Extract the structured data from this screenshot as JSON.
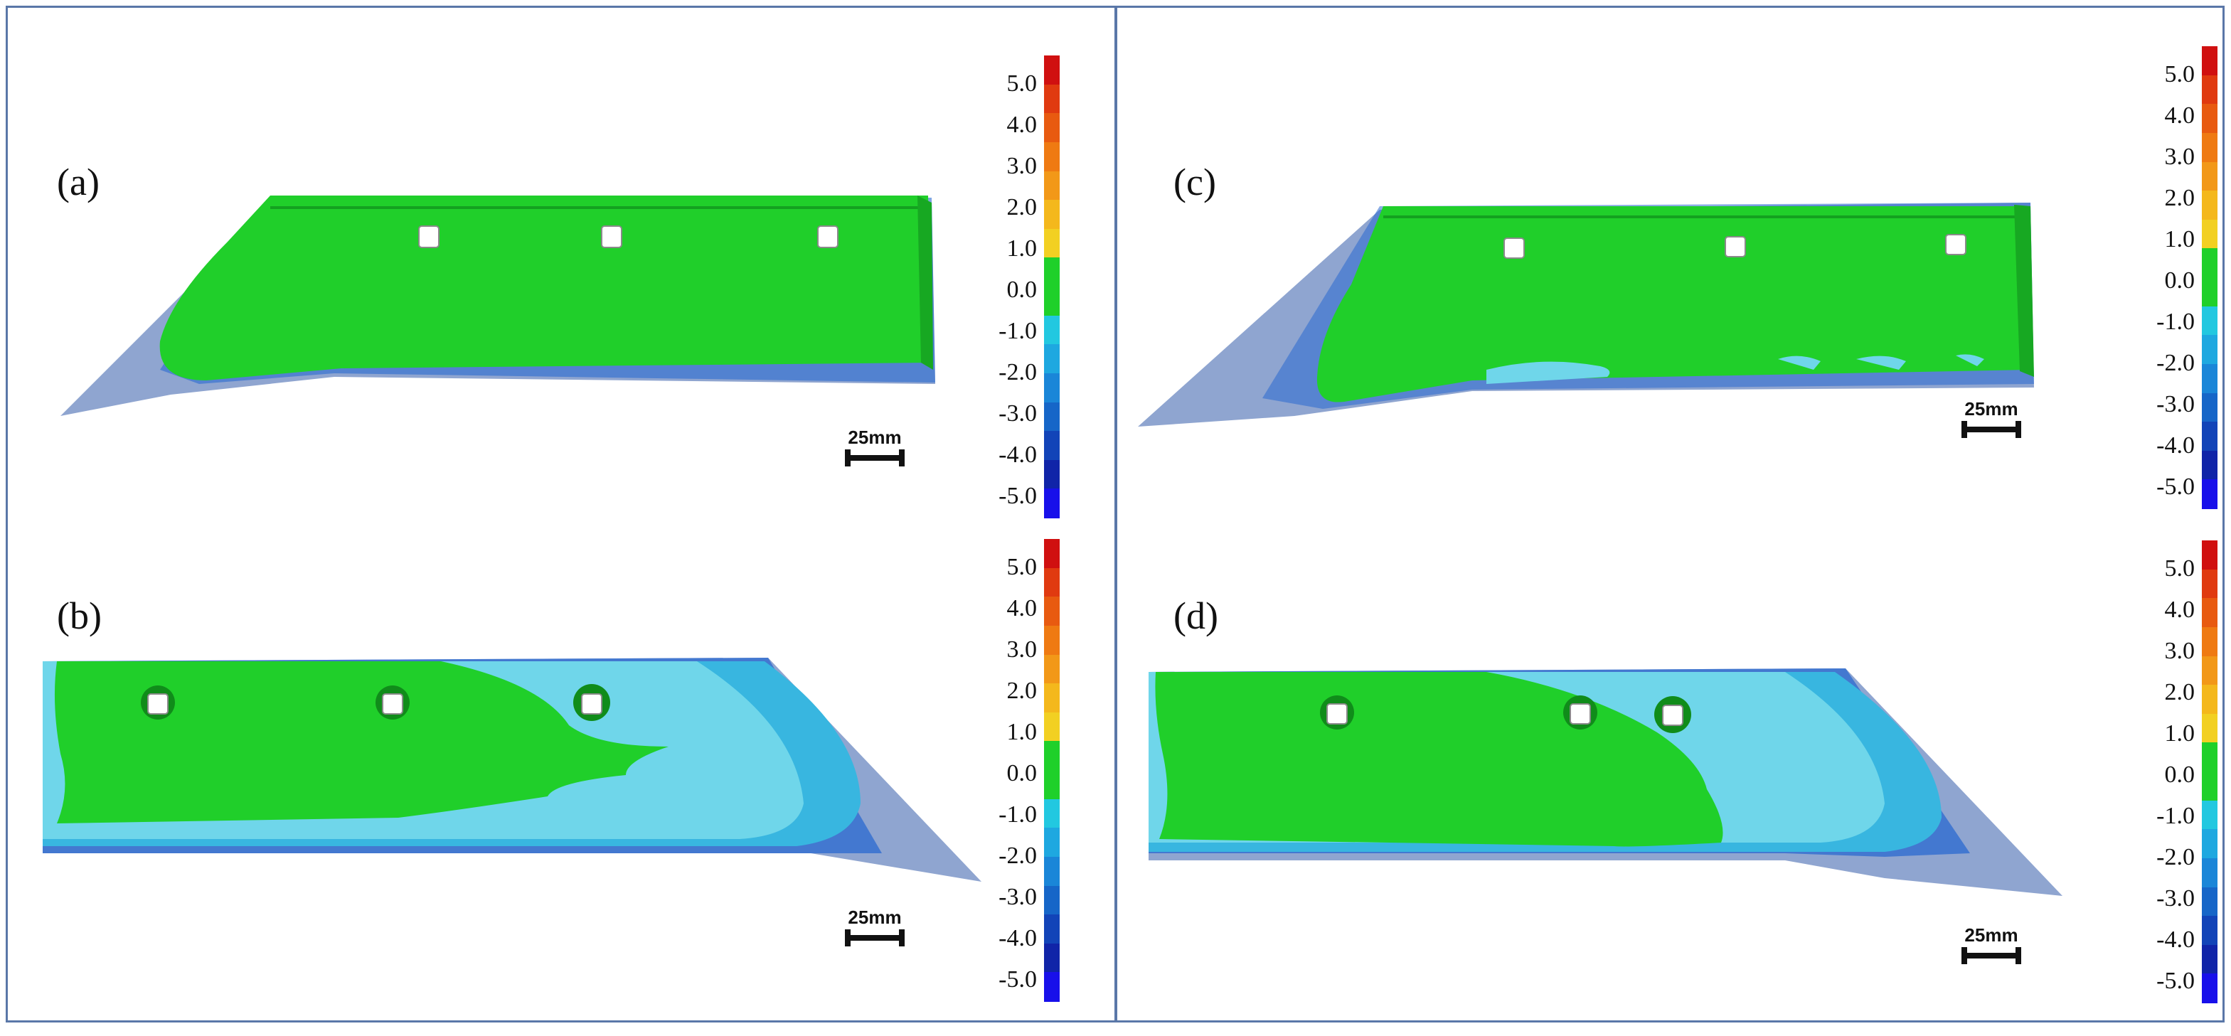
{
  "figure": {
    "panels": [
      {
        "id": "a",
        "label": "(a)",
        "scale_text": "25mm"
      },
      {
        "id": "b",
        "label": "(b)",
        "scale_text": "25mm"
      },
      {
        "id": "c",
        "label": "(c)",
        "scale_text": "25mm"
      },
      {
        "id": "d",
        "label": "(d)",
        "scale_text": "25mm"
      }
    ],
    "colorbar": {
      "ticks": [
        "5.0",
        "4.0",
        "3.0",
        "2.0",
        "1.0",
        "0.0",
        "-1.0",
        "-2.0",
        "-3.0",
        "-4.0",
        "-5.0"
      ],
      "colors": [
        "#d01010",
        "#e03a10",
        "#e85a10",
        "#ef7a12",
        "#f29818",
        "#f4b81c",
        "#f2d022",
        "#1fd02a",
        "#1fd02a",
        "#22c8e0",
        "#1ea8e0",
        "#1a86d8",
        "#1666c8",
        "#1244b8",
        "#1024a8",
        "#1810ea"
      ]
    },
    "colors": {
      "green": "#20cf2a",
      "lightblue": "#6fd6ea",
      "midblue": "#38b6e0",
      "deepblue": "#2a8ed8",
      "grey": "#8fa5d0",
      "frame": "#5a77a8"
    }
  }
}
